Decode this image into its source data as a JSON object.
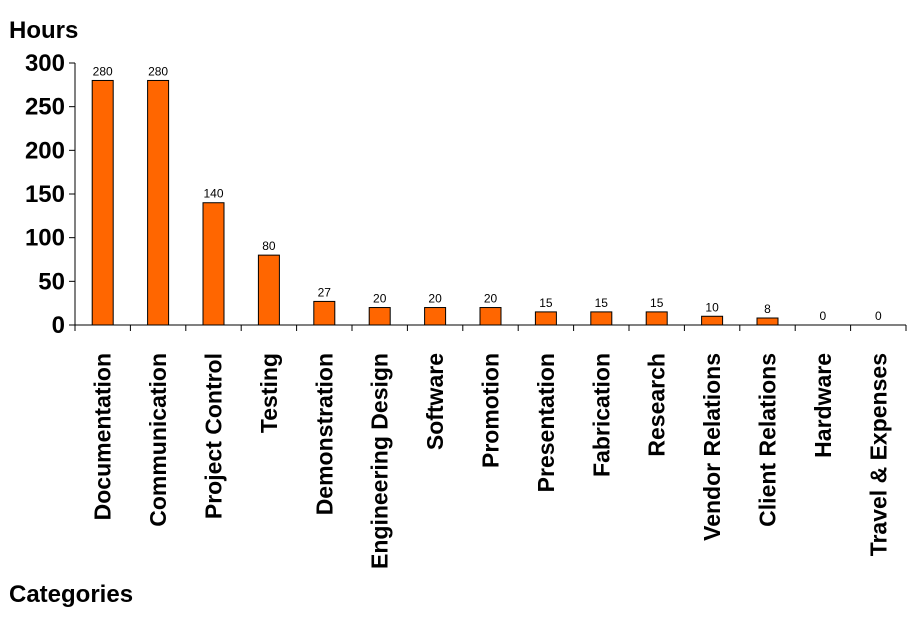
{
  "chart_data": {
    "type": "bar",
    "xlabel": "Categories",
    "ylabel": "Hours",
    "ylim": [
      0,
      300
    ],
    "yticks": [
      0,
      50,
      100,
      150,
      200,
      250,
      300
    ],
    "grid": false,
    "legend": "none",
    "bar_color": "#FF6600",
    "categories": [
      "Documentation",
      "Communication",
      "Project Control",
      "Testing",
      "Demonstration",
      "Engineering Design",
      "Software",
      "Promotion",
      "Presentation",
      "Fabrication",
      "Research",
      "Vendor Relations",
      "Client Relations",
      "Hardware",
      "Travel & Expenses"
    ],
    "values": [
      280,
      280,
      140,
      80,
      27,
      20,
      20,
      20,
      15,
      15,
      15,
      10,
      8,
      0,
      0
    ]
  }
}
